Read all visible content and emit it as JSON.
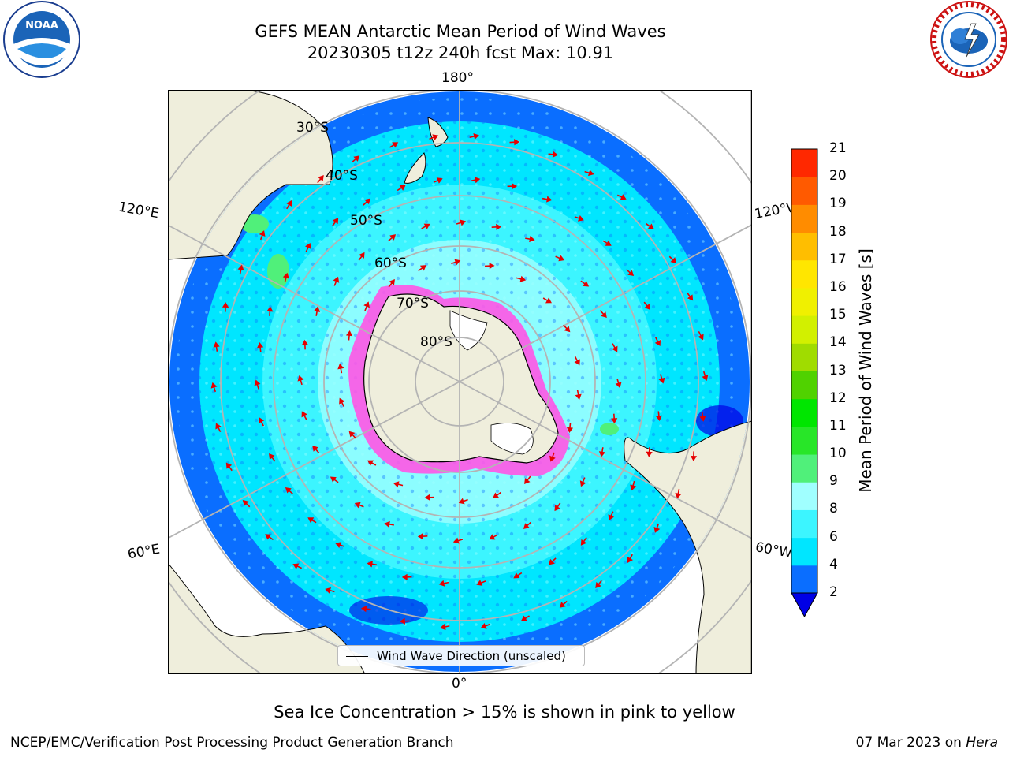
{
  "title": {
    "line1": "GEFS MEAN Antarctic Mean Period of Wind Waves",
    "line2": "20230305 t12z 240h fcst   Max: 10.91"
  },
  "logos": {
    "noaa_text": "NOAA",
    "noaa_ring_text": "NATIONAL OCEANIC AND ATMOSPHERIC ADMINISTRATION · U.S. DEPARTMENT OF COMMERCE",
    "nws_ring_text": "NATIONAL WEATHER SERVICE"
  },
  "map": {
    "projection": "south-polar-stereographic",
    "longitude_labels": {
      "top": "180°",
      "bottom": "0°",
      "left_upper": "120°E",
      "right_upper": "120°W",
      "left_lower": "60°E",
      "right_lower": "60°W"
    },
    "latitude_labels": [
      "30°S",
      "40°S",
      "50°S",
      "60°S",
      "70°S",
      "80°S"
    ],
    "legend_label": "Wind Wave Direction (unscaled)",
    "colors": {
      "land": "#efeedc",
      "coast": "#000000",
      "grid": "#b4b4b4",
      "arrow": "#e60000",
      "sea_ice": "#ff55e6",
      "ice_shelf": "#ffffff"
    }
  },
  "colorbar": {
    "label": "Mean Period of Wind Waves [s]",
    "ticks": [
      "2",
      "4",
      "6",
      "8",
      "9",
      "10",
      "11",
      "12",
      "13",
      "14",
      "15",
      "16",
      "17",
      "18",
      "19",
      "20",
      "21"
    ],
    "colors": [
      "#0000e6",
      "#0a6eff",
      "#00e6ff",
      "#3cf5ff",
      "#a0ffff",
      "#50f07a",
      "#28e628",
      "#00e600",
      "#50d200",
      "#a0dc00",
      "#d2f000",
      "#f0f000",
      "#ffe600",
      "#ffbe00",
      "#ff8c00",
      "#ff5a00",
      "#ff2800",
      "#ff0000"
    ]
  },
  "note": "Sea Ice Concentration > 15% is shown in pink to yellow",
  "footer": {
    "left": "NCEP/EMC/Verification Post Processing Product Generation Branch",
    "right_date": "07 Mar 2023 on ",
    "right_machine": "Hera"
  }
}
